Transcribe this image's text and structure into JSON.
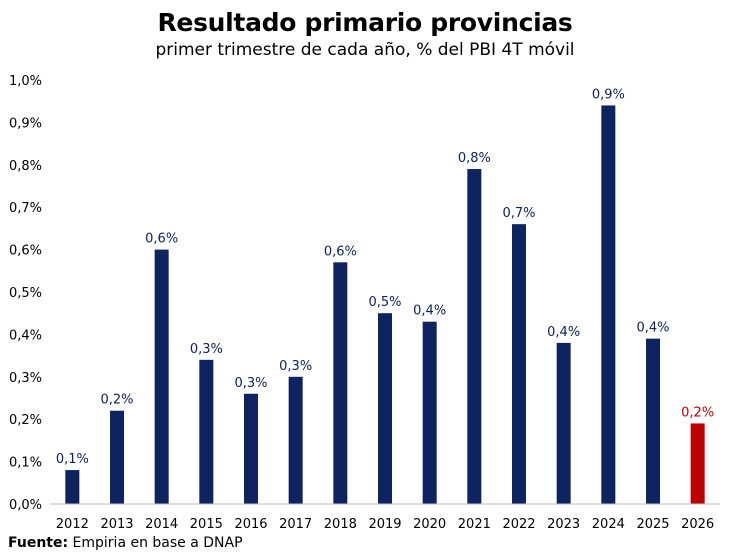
{
  "chart_data": {
    "type": "bar",
    "title": "Resultado primario provincias",
    "subtitle": "primer trimestre de cada año, % del PBI 4T móvil",
    "categories": [
      "2012",
      "2013",
      "2014",
      "2015",
      "2016",
      "2017",
      "2018",
      "2019",
      "2020",
      "2021",
      "2022",
      "2023",
      "2024",
      "2025",
      "2026"
    ],
    "values": [
      0.08,
      0.22,
      0.6,
      0.34,
      0.26,
      0.3,
      0.57,
      0.45,
      0.43,
      0.79,
      0.66,
      0.38,
      0.94,
      0.39,
      0.19
    ],
    "data_labels": [
      "0,1%",
      "0,2%",
      "0,6%",
      "0,3%",
      "0,3%",
      "0,3%",
      "0,6%",
      "0,5%",
      "0,4%",
      "0,8%",
      "0,7%",
      "0,4%",
      "0,9%",
      "0,4%",
      "0,2%"
    ],
    "ylim": [
      0,
      1.0
    ],
    "yticks": [
      0,
      0.1,
      0.2,
      0.3,
      0.4,
      0.5,
      0.6,
      0.7,
      0.8,
      0.9,
      1.0
    ],
    "ytick_labels": [
      "0,0%",
      "0,1%",
      "0,2%",
      "0,3%",
      "0,4%",
      "0,5%",
      "0,6%",
      "0,7%",
      "0,8%",
      "0,9%",
      "1,0%"
    ],
    "grid": false,
    "colors": {
      "bar": "#0d2461",
      "highlight": "#c00000",
      "label": "#0d2461",
      "highlight_label": "#c00000",
      "axis": "#bfbfbf"
    },
    "highlight_index": 14
  },
  "footer": {
    "source_label": "Fuente:",
    "source_text": " Empiria en base a DNAP"
  }
}
